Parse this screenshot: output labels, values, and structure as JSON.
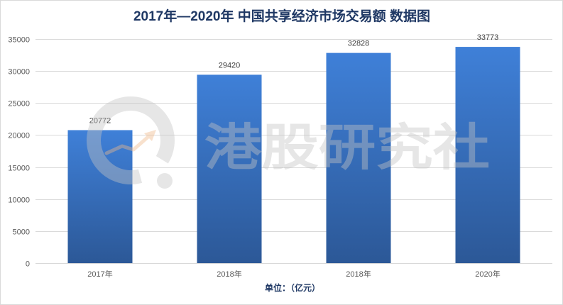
{
  "chart_data": {
    "type": "bar",
    "title": "2017年—2020年 中国共享经济市场交易额 数据图",
    "categories": [
      "2017年",
      "2018年",
      "2018年",
      "2020年"
    ],
    "values": [
      20772,
      29420,
      32828,
      33773
    ],
    "xlabel": "单位：（亿元）",
    "ylim": [
      0,
      35000
    ],
    "yticks": [
      0,
      5000,
      10000,
      15000,
      20000,
      25000,
      30000,
      35000
    ],
    "grid": true,
    "legend": "none",
    "data_labels": true,
    "colors": {
      "title": "#1f3864",
      "bar_top": "#3f80d8",
      "bar_bottom": "#2c5897",
      "grid": "#d9d9d9",
      "tick_text": "#595959"
    }
  },
  "watermark": {
    "text": "港股研究社",
    "icon": "trend-circle-logo-icon"
  }
}
